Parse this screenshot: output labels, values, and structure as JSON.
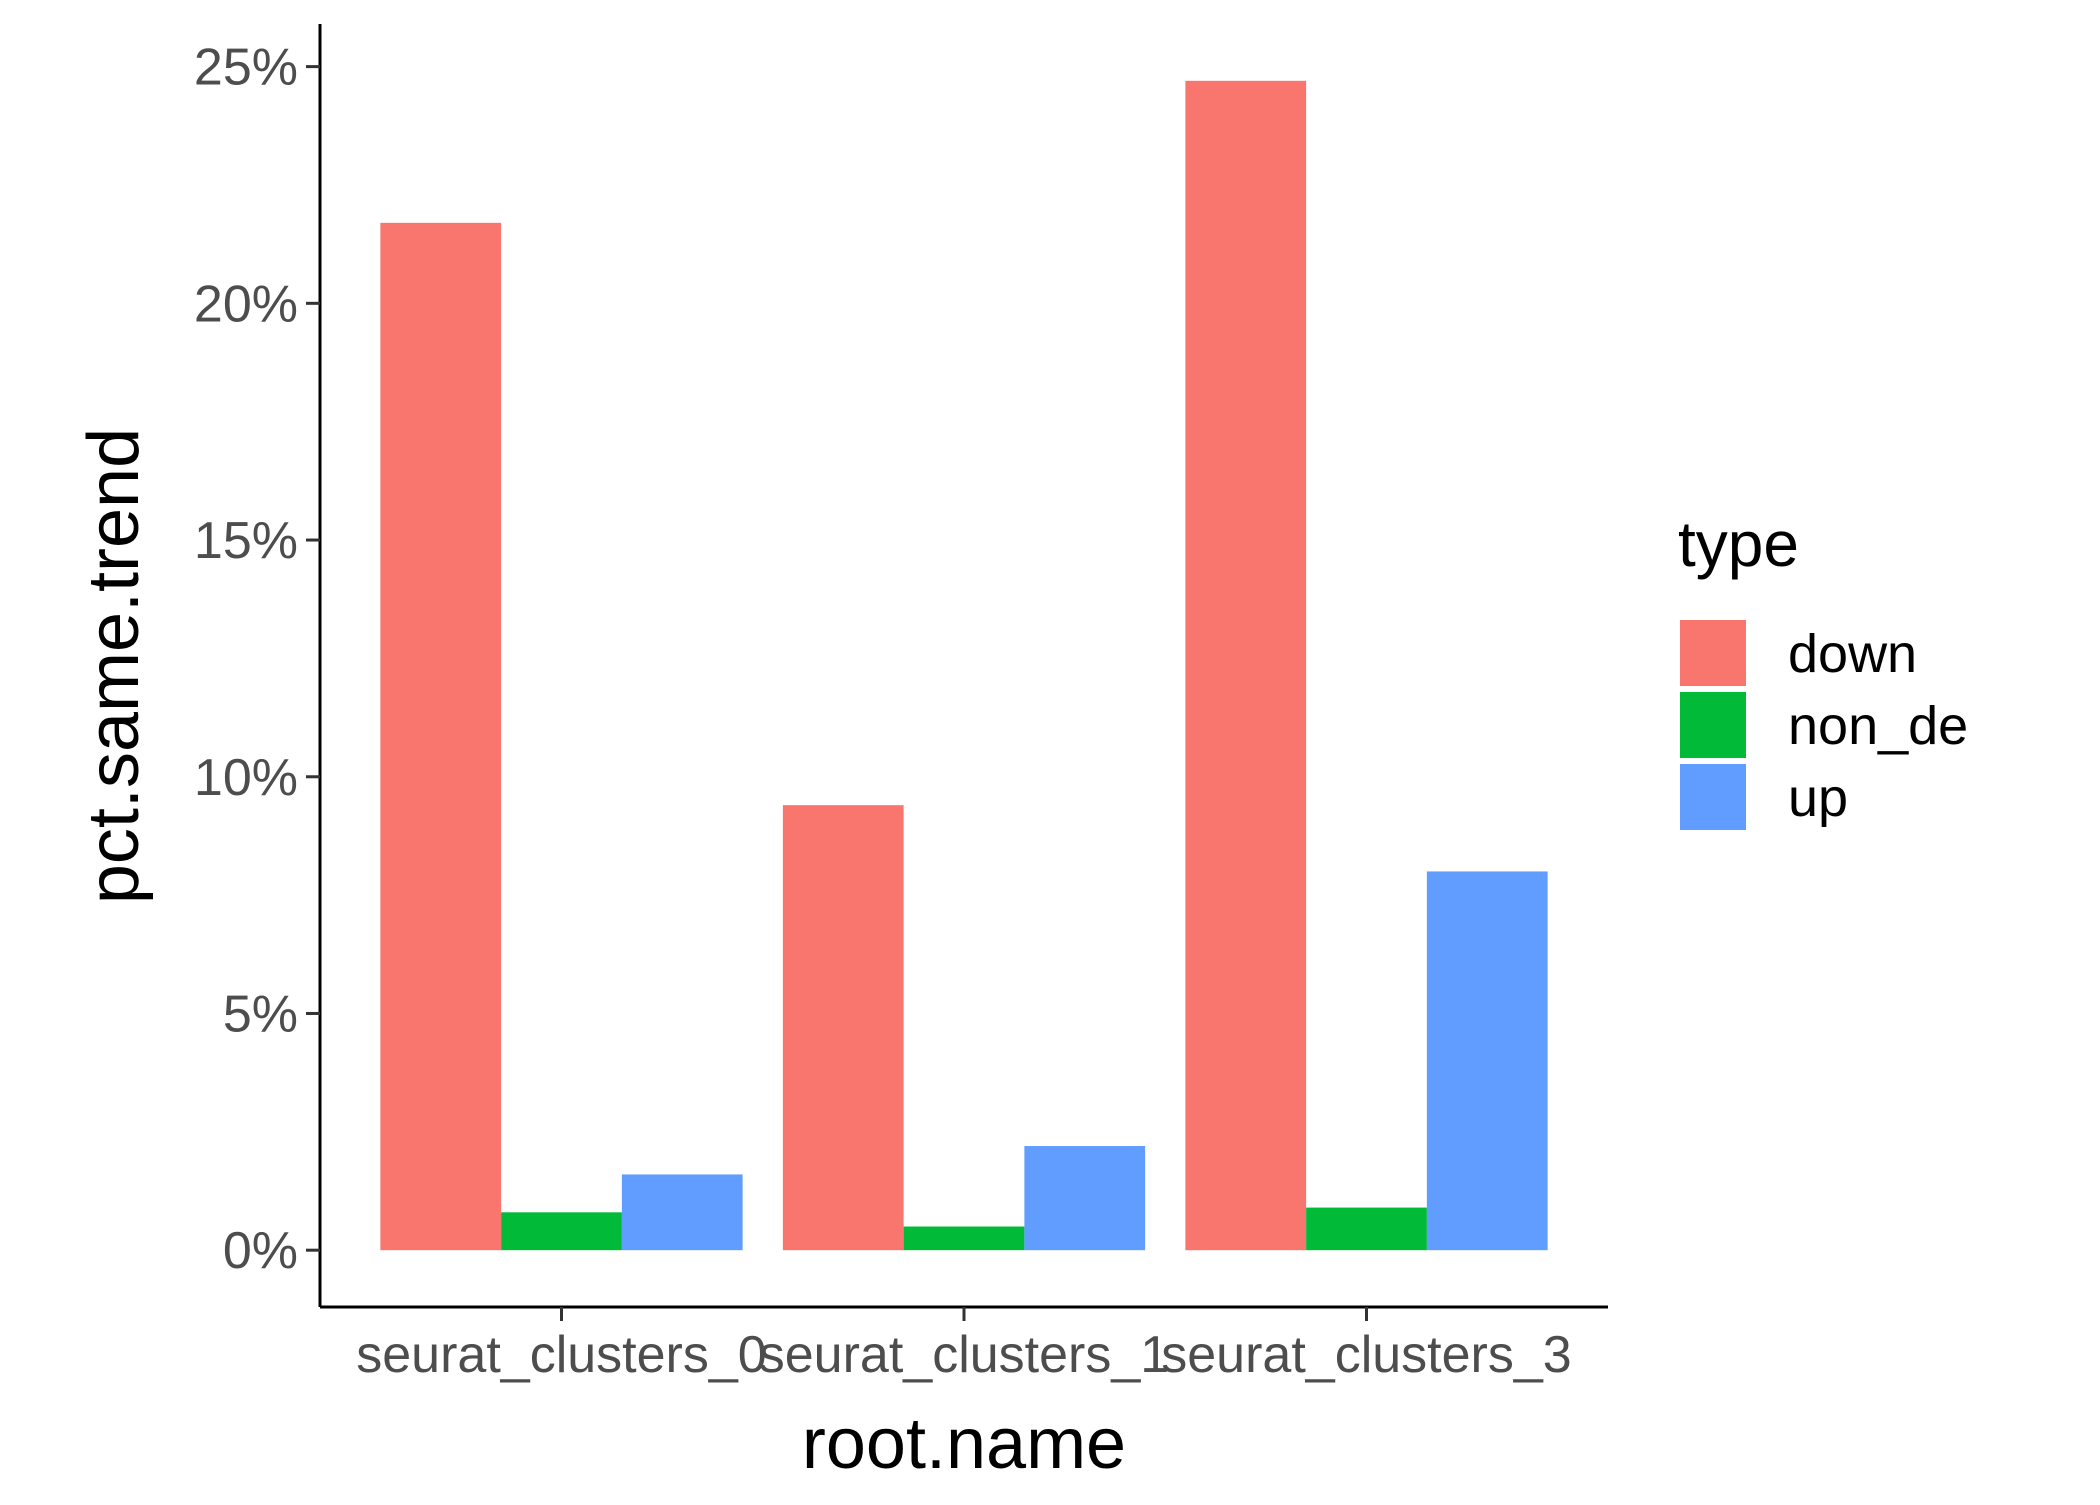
{
  "chart_data": {
    "type": "bar",
    "xlabel": "root.name",
    "ylabel": "pct.same.trend",
    "categories": [
      "seurat_clusters_0",
      "seurat_clusters_1",
      "seurat_clusters_3"
    ],
    "series": [
      {
        "name": "down",
        "values": [
          21.7,
          9.4,
          24.7
        ],
        "color": "#F8766D"
      },
      {
        "name": "non_de",
        "values": [
          0.8,
          0.5,
          0.9
        ],
        "color": "#00BA38"
      },
      {
        "name": "up",
        "values": [
          1.6,
          2.2,
          8.0
        ],
        "color": "#619CFF"
      }
    ],
    "ylim": [
      -1.2,
      25.9
    ],
    "yticks": [
      0,
      5,
      10,
      15,
      20,
      25
    ],
    "ytick_labels": [
      "0%",
      "5%",
      "10%",
      "15%",
      "20%",
      "25%"
    ],
    "legend": {
      "title": "type",
      "position": "right"
    },
    "grid": false
  }
}
